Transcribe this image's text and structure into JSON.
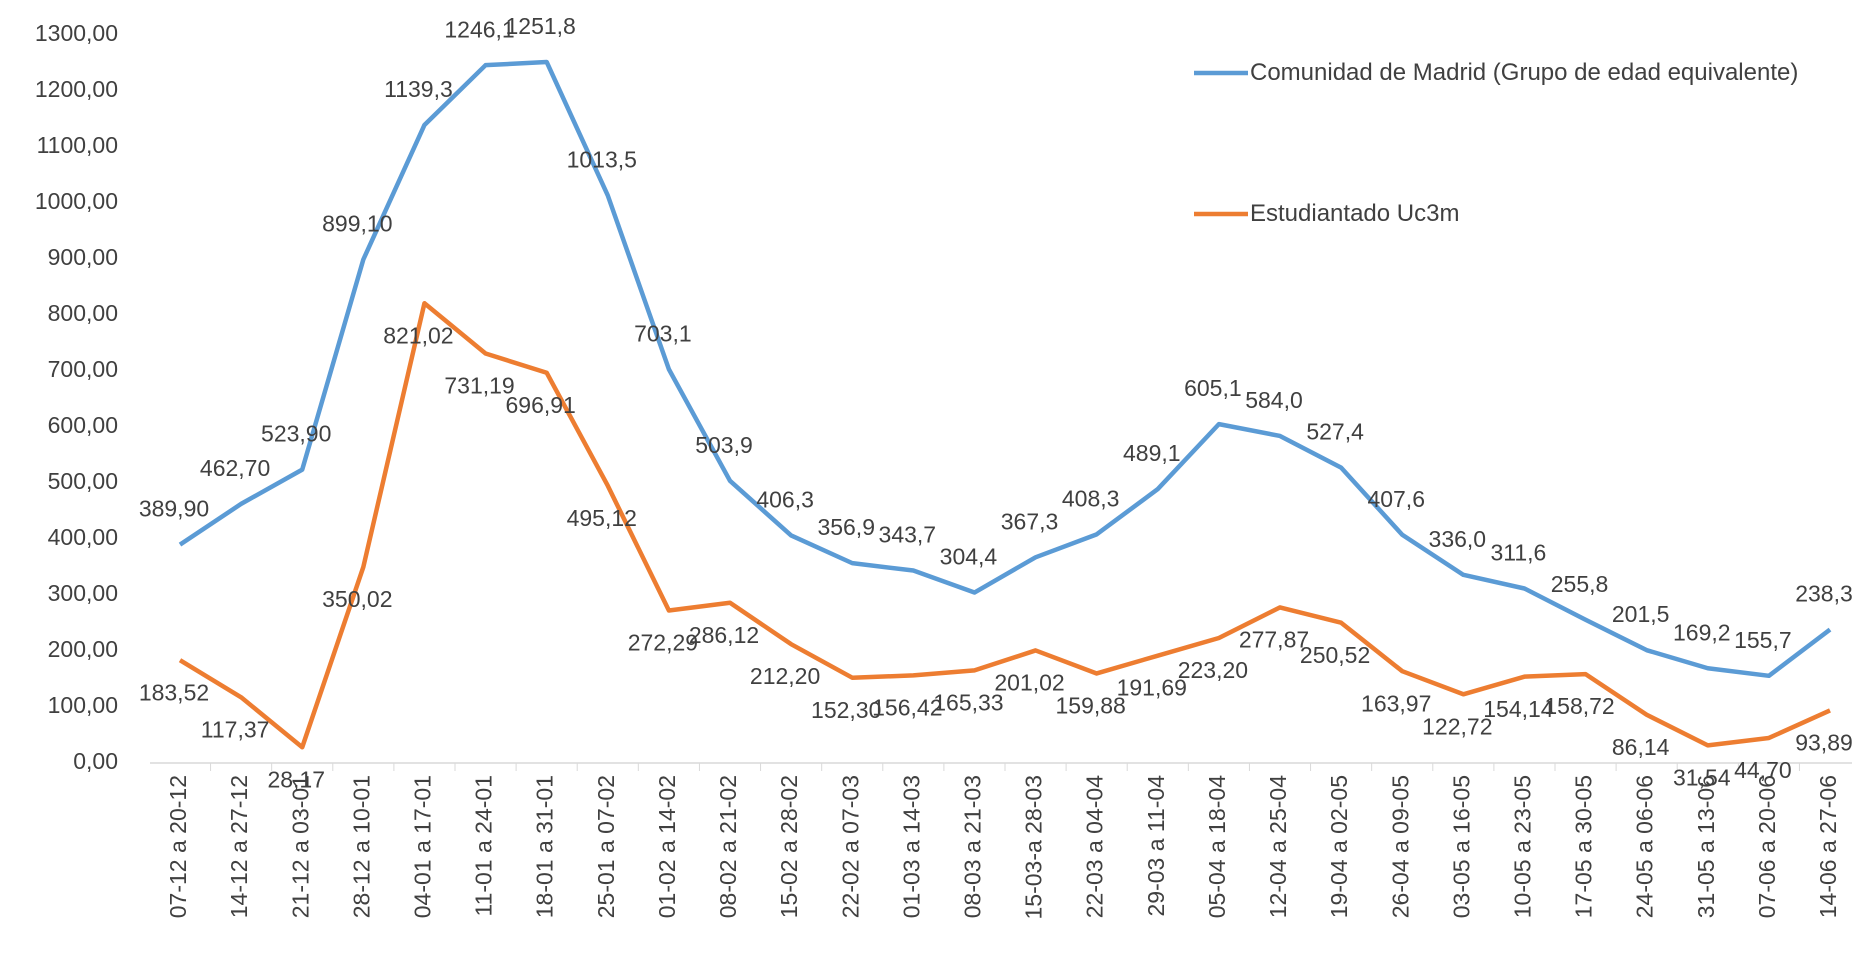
{
  "chart_data": {
    "type": "line",
    "categories": [
      "07-12 a 20-12",
      "14-12 a 27-12",
      "21-12 a 03-01",
      "28-12 a 10-01",
      "04-01 a 17-01",
      "11-01 a 24-01",
      "18-01 a 31-01",
      "25-01 a 07-02",
      "01-02 a 14-02",
      "08-02 a 21-02",
      "15-02 a 28-02",
      "22-02 a 07-03",
      "01-03 a 14-03",
      "08-03 a 21-03",
      "15-03-a 28-03",
      "22-03 a 04-04",
      "29-03 a 11-04",
      "05-04 a 18-04",
      "12-04 a 25-04",
      "19-04 a 02-05",
      "26-04 a 09-05",
      "03-05 a 16-05",
      "10-05 a 23-05",
      "17-05 a 30-05",
      "24-05 a 06-06",
      "31-05 a 13-06",
      "07-06 a 20-06",
      "14-06 a 27-06"
    ],
    "series": [
      {
        "name": "Comunidad de Madrid (Grupo de edad equivalente)",
        "color": "#5b9bd5",
        "values": [
          389.9,
          462.7,
          523.9,
          899.1,
          1139.3,
          1246.1,
          1251.8,
          1013.5,
          703.1,
          503.9,
          406.3,
          356.9,
          343.7,
          304.4,
          367.3,
          408.3,
          489.1,
          605.1,
          584.0,
          527.4,
          407.6,
          336.0,
          311.6,
          255.8,
          201.5,
          169.2,
          155.7,
          238.3
        ],
        "value_labels": [
          "389,90",
          "462,70",
          "523,90",
          "899,10",
          "1139,3",
          "1246,1",
          "1251,8",
          "1013,5",
          "703,1",
          "503,9",
          "406,3",
          "356,9",
          "343,7",
          "304,4",
          "367,3",
          "408,3",
          "489,1",
          "605,1",
          "584,0",
          "527,4",
          "407,6",
          "336,0",
          "311,6",
          "255,8",
          "201,5",
          "169,2",
          "155,7",
          "238,3"
        ]
      },
      {
        "name": "Estudiantado Uc3m",
        "color": "#ed7d31",
        "values": [
          183.52,
          117.37,
          28.17,
          350.02,
          821.02,
          731.19,
          696.91,
          495.12,
          272.29,
          286.12,
          212.2,
          152.3,
          156.42,
          165.33,
          201.02,
          159.88,
          191.69,
          223.2,
          277.87,
          250.52,
          163.97,
          122.72,
          154.14,
          158.72,
          86.14,
          31.54,
          44.7,
          93.89
        ],
        "value_labels": [
          "183,52",
          "117,37",
          "28,17",
          "350,02",
          "821,02",
          "731,19",
          "696,91",
          "495,12",
          "272,29",
          "286,12",
          "212,20",
          "152,30",
          "156,42",
          "165,33",
          "201,02",
          "159,88",
          "191,69",
          "223,20",
          "277,87",
          "250,52",
          "163,97",
          "122,72",
          "154,14",
          "158,72",
          "86,14",
          "31,54",
          "44,70",
          "93,89"
        ]
      }
    ],
    "ylim": [
      0,
      1300
    ],
    "yticks": [
      {
        "value": 0,
        "label": "0,00"
      },
      {
        "value": 100,
        "label": "100,00"
      },
      {
        "value": 200,
        "label": "200,00"
      },
      {
        "value": 300,
        "label": "300,00"
      },
      {
        "value": 400,
        "label": "400,00"
      },
      {
        "value": 500,
        "label": "500,00"
      },
      {
        "value": 600,
        "label": "600,00"
      },
      {
        "value": 700,
        "label": "700,00"
      },
      {
        "value": 800,
        "label": "800,00"
      },
      {
        "value": 900,
        "label": "900,00"
      },
      {
        "value": 1000,
        "label": "1000,00"
      },
      {
        "value": 1100,
        "label": "1100,00"
      },
      {
        "value": 1200,
        "label": "1200,00"
      },
      {
        "value": 1300,
        "label": "1300,00"
      }
    ],
    "grid": false,
    "legend": "upper right"
  }
}
